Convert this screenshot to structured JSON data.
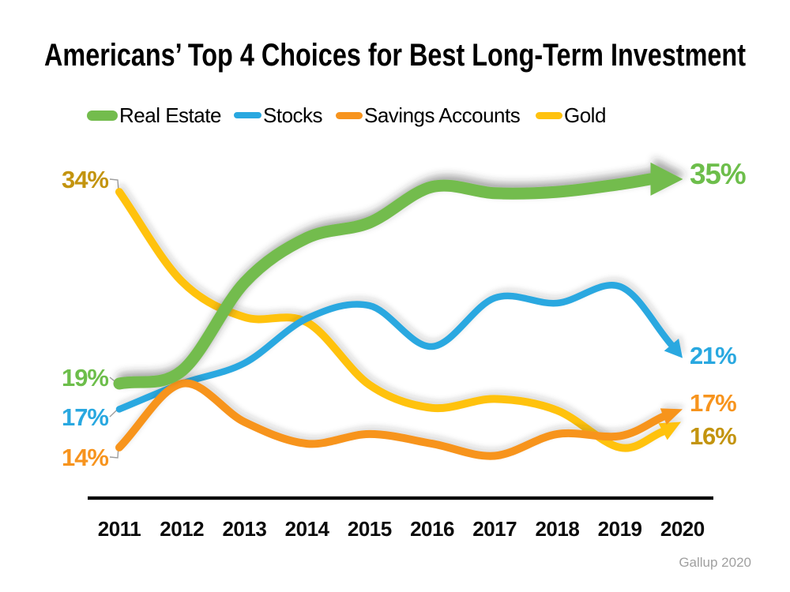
{
  "title": {
    "text": "Americans’ Top 4 Choices for Best Long-Term Investment"
  },
  "source_note": {
    "text": "Gallup 2020"
  },
  "chart_data": {
    "type": "line",
    "title": "Americans’ Top 4 Choices for Best Long-Term Investment",
    "x": [
      2011,
      2012,
      2013,
      2014,
      2015,
      2016,
      2017,
      2018,
      2019,
      2020
    ],
    "x_axis_labels": [
      "2011",
      "2012",
      "2013",
      "2014",
      "2015",
      "2016",
      "2017",
      "2018",
      "2019",
      "2020"
    ],
    "y_unit": "%",
    "ylim": [
      12,
      36
    ],
    "grid": false,
    "legend_position": "top",
    "background": "#ffffff",
    "source": "Gallup 2020",
    "series": [
      {
        "name": "Gold",
        "color": "#FFC20E",
        "label_color": "#C3940F",
        "values": [
          34,
          27,
          24.2,
          23.8,
          18.9,
          17.1,
          17.8,
          16.9,
          14.0,
          16
        ],
        "start_label": "34%",
        "end_label": "16%"
      },
      {
        "name": "Stocks",
        "color": "#29A8E0",
        "label_color": "#29A8E0",
        "values": [
          17,
          19,
          20.6,
          24.1,
          25.1,
          21.9,
          25.7,
          25.3,
          26.6,
          21
        ],
        "start_label": "17%",
        "end_label": "21%"
      },
      {
        "name": "Savings Accounts",
        "color": "#F7941E",
        "label_color": "#F7941E",
        "values": [
          14,
          19,
          16.0,
          14.3,
          15.05,
          14.3,
          13.35,
          15.05,
          14.9,
          17
        ],
        "start_label": "14%",
        "end_label": "17%"
      },
      {
        "name": "Real Estate",
        "color": "#73BC4D",
        "label_color": "#6DBE4B",
        "values": [
          19,
          20,
          26.9,
          30.4,
          31.6,
          34.4,
          33.9,
          34.0,
          34.6,
          35
        ],
        "start_label": "19%",
        "end_label": "35%"
      }
    ]
  }
}
